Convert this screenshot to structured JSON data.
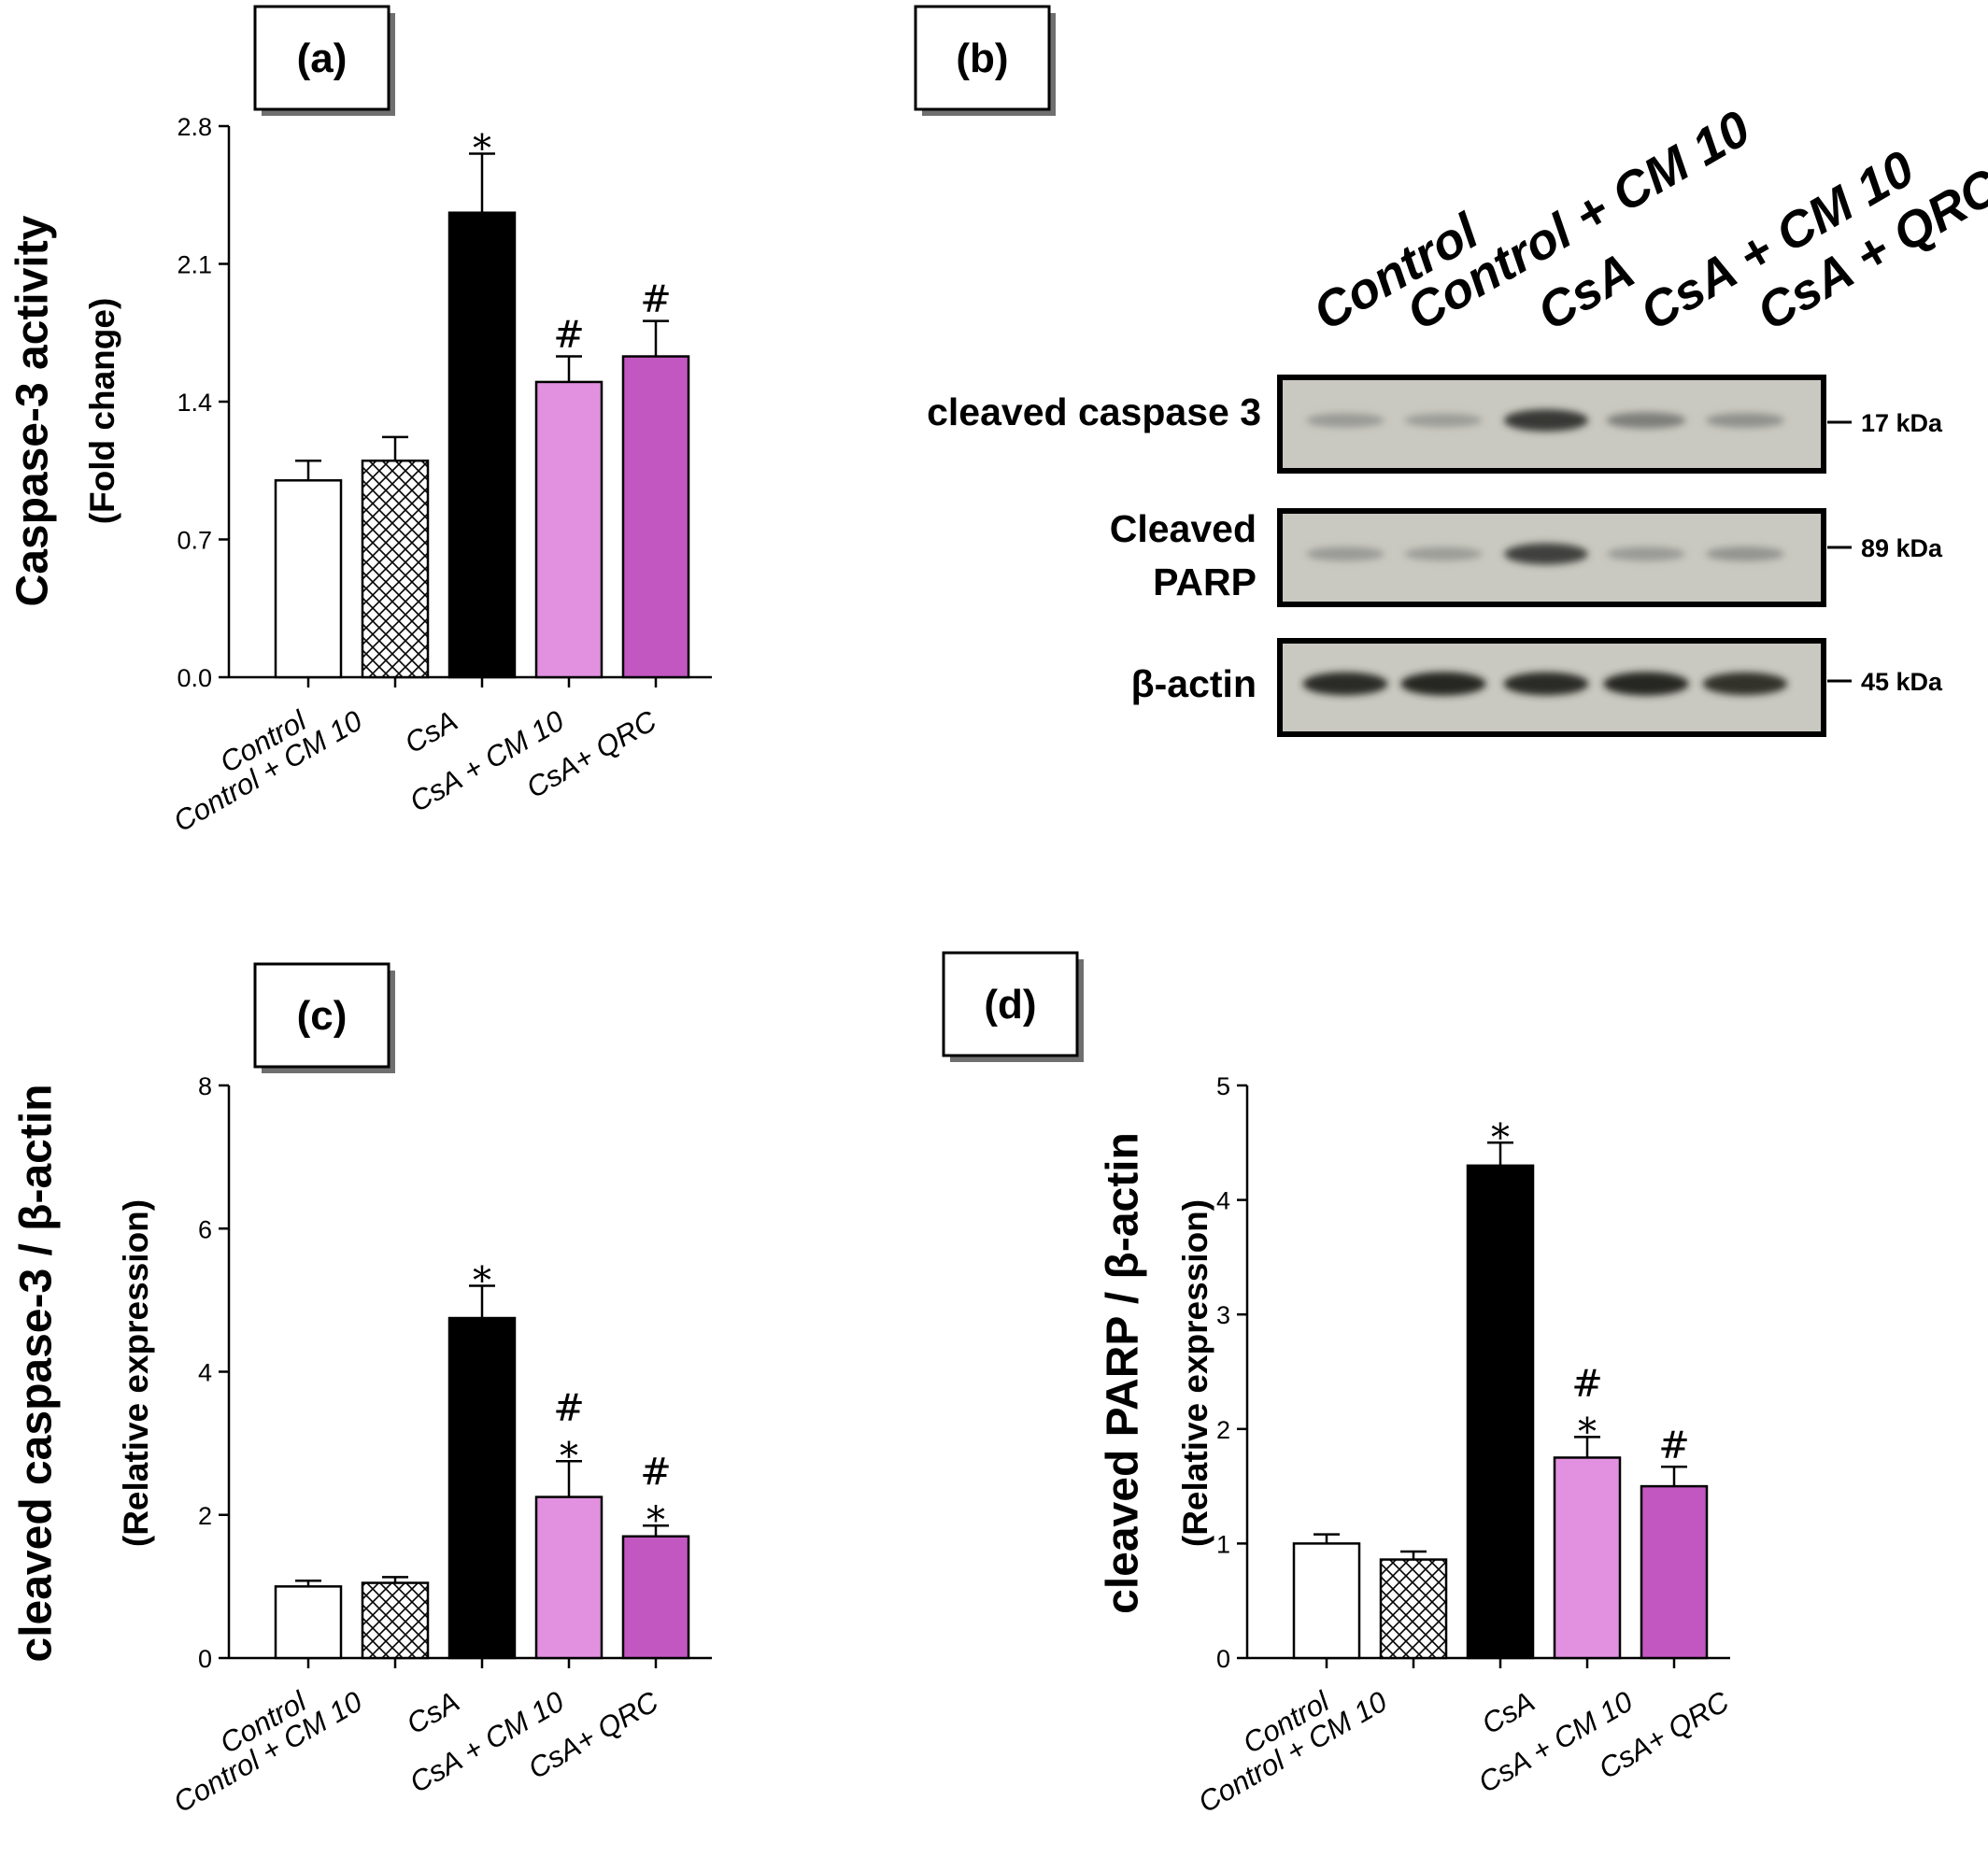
{
  "chart_data": [
    {
      "panel": "(a)",
      "type": "bar",
      "ylabel": "Caspase-3 activity",
      "ylabel2": "(Fold change)",
      "categories": [
        "Control",
        "Control +  CM 10",
        "CsA",
        "CsA + CM 10",
        "CsA+ QRC"
      ],
      "values": [
        1.0,
        1.1,
        2.36,
        1.5,
        1.63
      ],
      "errors": [
        0.1,
        0.12,
        0.3,
        0.13,
        0.18
      ],
      "significance": [
        [],
        [],
        [
          "*"
        ],
        [
          "#"
        ],
        [
          "#"
        ]
      ],
      "yticks": [
        "0.0",
        "0.7",
        "1.4",
        "2.1",
        "2.8"
      ],
      "ylim": [
        0,
        2.8
      ],
      "bar_fills": [
        "white",
        "crosshatch",
        "#000000",
        "#e291e0",
        "#c257c2"
      ]
    },
    {
      "panel": "(b)",
      "type": "western-blot",
      "lanes": [
        "Control",
        "Control + CM 10",
        "CsA",
        "CsA + CM 10",
        "CsA + QRC"
      ],
      "rows": [
        {
          "label_lines": [
            "cleaved caspase 3"
          ],
          "kda": "17 kDa",
          "intensity": [
            0.3,
            0.28,
            0.85,
            0.45,
            0.35
          ]
        },
        {
          "label_lines": [
            "Cleaved",
            "PARP"
          ],
          "kda": "89 kDa",
          "intensity": [
            0.3,
            0.28,
            0.8,
            0.3,
            0.33
          ]
        },
        {
          "label_lines": [
            "β-actin"
          ],
          "kda": "45 kDa",
          "intensity": [
            0.92,
            0.95,
            0.92,
            0.95,
            0.9
          ]
        }
      ]
    },
    {
      "panel": "(c)",
      "type": "bar",
      "ylabel": "cleaved caspase-3 / β-actin",
      "ylabel2": "(Relative expression)",
      "categories": [
        "Control",
        "Control +  CM 10",
        "CsA",
        "CsA + CM 10",
        "CsA+ QRC"
      ],
      "values": [
        1.0,
        1.05,
        4.75,
        2.25,
        1.7
      ],
      "errors": [
        0.08,
        0.08,
        0.45,
        0.5,
        0.15
      ],
      "significance": [
        [],
        [],
        [
          "*"
        ],
        [
          "*",
          "#"
        ],
        [
          "*",
          "#"
        ]
      ],
      "yticks": [
        "0",
        "2",
        "4",
        "6",
        "8"
      ],
      "ylim": [
        0,
        8
      ],
      "bar_fills": [
        "white",
        "crosshatch",
        "#000000",
        "#e291e0",
        "#c257c2"
      ]
    },
    {
      "panel": "(d)",
      "type": "bar",
      "ylabel": "cleaved PARP / β-actin",
      "ylabel2": "(Relative expression)",
      "categories": [
        "Control",
        "Control +  CM 10",
        "CsA",
        "CsA + CM 10",
        "CsA+ QRC"
      ],
      "values": [
        1.0,
        0.86,
        4.3,
        1.75,
        1.5
      ],
      "errors": [
        0.08,
        0.07,
        0.2,
        0.18,
        0.17
      ],
      "significance": [
        [],
        [],
        [
          "*"
        ],
        [
          "*",
          "#"
        ],
        [
          "#"
        ]
      ],
      "yticks": [
        "0",
        "1",
        "2",
        "3",
        "4",
        "5"
      ],
      "ylim": [
        0,
        5
      ],
      "bar_fills": [
        "white",
        "crosshatch",
        "#000000",
        "#e291e0",
        "#c257c2"
      ]
    }
  ]
}
